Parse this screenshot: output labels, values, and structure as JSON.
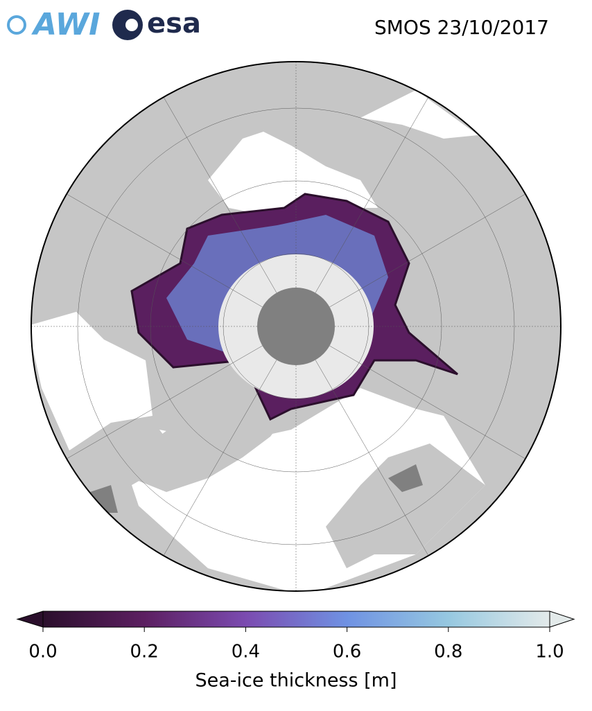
{
  "header": {
    "logos": [
      "AWI",
      "esa"
    ],
    "title": "SMOS 23/10/2017"
  },
  "colorbar": {
    "label": "Sea-ice thickness [m]",
    "lim": [
      0,
      1
    ],
    "ticks": [
      {
        "value": 0,
        "label": "0.0"
      },
      {
        "value": 0.2,
        "label": "0.2"
      },
      {
        "value": 0.4,
        "label": "0.4"
      },
      {
        "value": 0.6,
        "label": "0.6"
      },
      {
        "value": 0.8,
        "label": "0.8"
      },
      {
        "value": 1,
        "label": "1.0"
      }
    ],
    "colors": [
      "#2b0f2c",
      "#5c1f61",
      "#7b4bb0",
      "#6f92e3",
      "#96c8e0",
      "#e3eaea"
    ]
  }
}
